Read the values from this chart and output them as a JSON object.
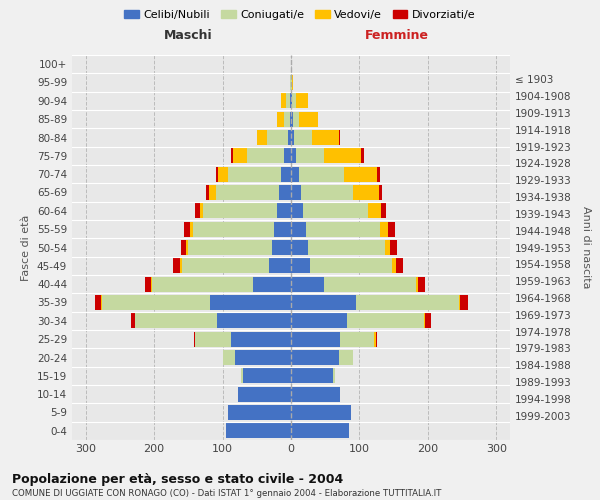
{
  "age_groups": [
    "0-4",
    "5-9",
    "10-14",
    "15-19",
    "20-24",
    "25-29",
    "30-34",
    "35-39",
    "40-44",
    "45-49",
    "50-54",
    "55-59",
    "60-64",
    "65-69",
    "70-74",
    "75-79",
    "80-84",
    "85-89",
    "90-94",
    "95-99",
    "100+"
  ],
  "birth_years": [
    "1999-2003",
    "1994-1998",
    "1989-1993",
    "1984-1988",
    "1979-1983",
    "1974-1978",
    "1969-1973",
    "1964-1968",
    "1959-1963",
    "1954-1958",
    "1949-1953",
    "1944-1948",
    "1939-1943",
    "1934-1938",
    "1929-1933",
    "1924-1928",
    "1919-1923",
    "1914-1918",
    "1909-1913",
    "1904-1908",
    "≤ 1903"
  ],
  "maschi": {
    "celibi": [
      95,
      92,
      78,
      70,
      82,
      88,
      108,
      118,
      55,
      32,
      28,
      25,
      20,
      18,
      14,
      10,
      5,
      2,
      2,
      0,
      0
    ],
    "coniugati": [
      0,
      0,
      0,
      3,
      18,
      52,
      120,
      158,
      148,
      128,
      122,
      118,
      108,
      92,
      78,
      55,
      30,
      8,
      5,
      1,
      0
    ],
    "vedovi": [
      0,
      0,
      0,
      0,
      0,
      0,
      0,
      2,
      2,
      2,
      3,
      4,
      5,
      10,
      15,
      20,
      15,
      10,
      8,
      1,
      0
    ],
    "divorziati": [
      0,
      0,
      0,
      0,
      0,
      2,
      6,
      8,
      8,
      10,
      8,
      10,
      8,
      4,
      3,
      2,
      0,
      0,
      0,
      0,
      0
    ]
  },
  "femmine": {
    "nubili": [
      85,
      88,
      72,
      62,
      70,
      72,
      82,
      95,
      48,
      28,
      25,
      22,
      18,
      15,
      12,
      8,
      5,
      3,
      2,
      0,
      0
    ],
    "coniugate": [
      0,
      0,
      0,
      3,
      20,
      50,
      112,
      150,
      135,
      120,
      112,
      108,
      95,
      75,
      65,
      40,
      25,
      8,
      5,
      1,
      0
    ],
    "vedove": [
      0,
      0,
      0,
      0,
      0,
      2,
      2,
      2,
      3,
      5,
      8,
      12,
      18,
      38,
      48,
      55,
      40,
      28,
      18,
      2,
      0
    ],
    "divorziate": [
      0,
      0,
      0,
      0,
      0,
      2,
      8,
      12,
      10,
      10,
      10,
      10,
      8,
      5,
      5,
      3,
      2,
      0,
      0,
      0,
      0
    ]
  },
  "colors": {
    "celibi": "#4472C4",
    "coniugati": "#c5d9a0",
    "vedovi": "#ffc000",
    "divorziati": "#cc0000"
  },
  "title": "Popolazione per età, sesso e stato civile - 2004",
  "subtitle": "COMUNE DI UGGIATE CON RONAGO (CO) - Dati ISTAT 1° gennaio 2004 - Elaborazione TUTTITALIA.IT",
  "ylabel_left": "Fasce di età",
  "ylabel_right": "Anni di nascita",
  "xlabel_left": "Maschi",
  "xlabel_right": "Femmine",
  "xlim": 320,
  "bg_color": "#f0f0f0",
  "plot_bg": "#e8e8e8",
  "grid_color": "#cccccc"
}
